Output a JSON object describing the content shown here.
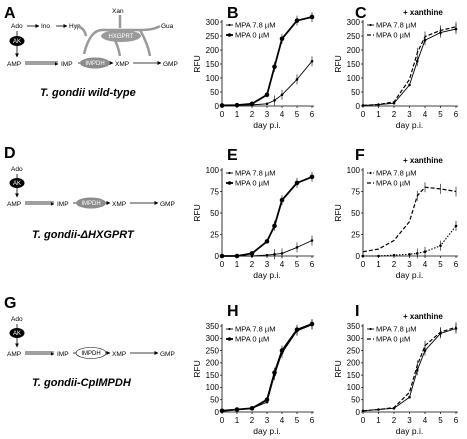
{
  "colors": {
    "line": "#000000",
    "hxgprt_enzyme": "#9a9a9a",
    "impdh_enzyme": "#8c8c8c",
    "cp_impdh_enzyme": "#ffffff",
    "ak_enzyme": "#000000"
  },
  "panels": {
    "A": {
      "label": "A",
      "strain": "T. gondii wild-type",
      "metabolites": {
        "ado": "Ado",
        "ino": "Ino",
        "hyp": "Hyp",
        "xan": "Xan",
        "gua": "Gua",
        "amp": "AMP",
        "imp": "IMP",
        "xmp": "XMP",
        "gmp": "GMP"
      },
      "enzymes": {
        "ak": "AK",
        "hxgprt": "HXGPRT",
        "impdh": "IMPDH"
      }
    },
    "D": {
      "label": "D",
      "strain": "T. gondii-ΔHXGPRT",
      "metabolites": {
        "ado": "Ado",
        "amp": "AMP",
        "imp": "IMP",
        "xmp": "XMP",
        "gmp": "GMP"
      },
      "enzymes": {
        "ak": "AK",
        "impdh": "IMPDH"
      }
    },
    "G": {
      "label": "G",
      "strain": "T. gondii-CpIMPDH",
      "metabolites": {
        "ado": "Ado",
        "amp": "AMP",
        "imp": "IMP",
        "xmp": "XMP",
        "gmp": "GMP"
      },
      "enzymes": {
        "ak": "AK",
        "impdh": "IMPDH"
      }
    }
  },
  "chart_data": [
    {
      "panel": "B",
      "type": "line",
      "title": "",
      "xlabel": "day p.i.",
      "ylabel": "RFU",
      "xlim": [
        0,
        6
      ],
      "ylim": [
        0,
        300
      ],
      "xticks": [
        0,
        1,
        2,
        3,
        4,
        5,
        6
      ],
      "yticks": [
        0,
        50,
        100,
        150,
        200,
        250,
        300
      ],
      "x": [
        0,
        1,
        2,
        3,
        3.5,
        4,
        5,
        6
      ],
      "series": [
        {
          "name": "MPA 7.8 µM",
          "style": "thin",
          "marker": "small",
          "values": [
            2,
            3,
            4,
            8,
            20,
            40,
            95,
            160
          ]
        },
        {
          "name": "MPA 0 µM",
          "style": "thick",
          "marker": "large",
          "values": [
            2,
            3,
            8,
            40,
            140,
            240,
            305,
            318
          ]
        }
      ]
    },
    {
      "panel": "C",
      "condition": "+ xanthine",
      "type": "line",
      "title": "",
      "xlabel": "day p.i.",
      "ylabel": "RFU",
      "xlim": [
        0,
        6
      ],
      "ylim": [
        0,
        300
      ],
      "xticks": [
        0,
        1,
        2,
        3,
        4,
        5,
        6
      ],
      "yticks": [
        0,
        50,
        100,
        150,
        200,
        250,
        300
      ],
      "x": [
        0,
        1,
        2,
        3,
        3.5,
        4,
        5,
        6
      ],
      "series": [
        {
          "name": "MPA 7.8 µM",
          "style": "thin",
          "marker": "small",
          "values": [
            2,
            5,
            10,
            75,
            160,
            235,
            262,
            275
          ]
        },
        {
          "name": "MPA 0 µM",
          "style": "dash",
          "marker": "none",
          "values": [
            2,
            5,
            15,
            95,
            190,
            248,
            270,
            283
          ]
        }
      ]
    },
    {
      "panel": "E",
      "type": "line",
      "title": "",
      "xlabel": "day p.i.",
      "ylabel": "RFU",
      "xlim": [
        0,
        6
      ],
      "ylim": [
        0,
        100
      ],
      "xticks": [
        0,
        1,
        2,
        3,
        4,
        5,
        6
      ],
      "yticks": [
        0,
        25,
        50,
        75,
        100
      ],
      "x": [
        0,
        1,
        2,
        3,
        3.5,
        4,
        5,
        6
      ],
      "series": [
        {
          "name": "MPA 7.8 µM",
          "style": "thin",
          "marker": "small",
          "values": [
            0,
            0,
            0,
            1,
            2,
            3,
            10,
            18
          ]
        },
        {
          "name": "MPA 0 µM",
          "style": "thick",
          "marker": "large",
          "values": [
            0,
            0,
            3,
            17,
            35,
            65,
            85,
            92
          ]
        }
      ]
    },
    {
      "panel": "F",
      "condition": "+ xanthine",
      "type": "line",
      "title": "",
      "xlabel": "day p.i.",
      "ylabel": "RFU",
      "xlim": [
        0,
        6
      ],
      "ylim": [
        0,
        100
      ],
      "xticks": [
        0,
        1,
        2,
        3,
        4,
        5,
        6
      ],
      "yticks": [
        0,
        25,
        50,
        75,
        100
      ],
      "x": [
        0,
        1,
        2,
        3,
        3.5,
        4,
        5,
        6
      ],
      "series": [
        {
          "name": "MPA 7.8 µM",
          "style": "dotted",
          "marker": "small",
          "values": [
            0,
            0,
            1,
            2,
            3,
            5,
            12,
            35
          ]
        },
        {
          "name": "MPA 0 µM",
          "style": "dash",
          "marker": "none",
          "values": [
            5,
            8,
            18,
            40,
            70,
            80,
            78,
            75
          ]
        }
      ]
    },
    {
      "panel": "H",
      "type": "line",
      "title": "",
      "xlabel": "day p.i.",
      "ylabel": "RFU",
      "xlim": [
        0,
        6
      ],
      "ylim": [
        0,
        350
      ],
      "xticks": [
        0,
        1,
        2,
        3,
        4,
        5,
        6
      ],
      "yticks": [
        0,
        50,
        100,
        150,
        200,
        250,
        300,
        350
      ],
      "x": [
        0,
        1,
        2,
        3,
        3.5,
        4,
        5,
        6
      ],
      "series": [
        {
          "name": "MPA 7.8 µM",
          "style": "thin",
          "marker": "small",
          "values": [
            5,
            10,
            15,
            40,
            150,
            240,
            330,
            355
          ]
        },
        {
          "name": "MPA 0 µM",
          "style": "thick",
          "marker": "large",
          "values": [
            5,
            10,
            15,
            50,
            160,
            250,
            335,
            358
          ]
        }
      ]
    },
    {
      "panel": "I",
      "condition": "+ xanthine",
      "type": "line",
      "title": "",
      "xlabel": "day p.i.",
      "ylabel": "RFU",
      "xlim": [
        0,
        6
      ],
      "ylim": [
        0,
        350
      ],
      "xticks": [
        0,
        1,
        2,
        3,
        4,
        5,
        6
      ],
      "yticks": [
        0,
        50,
        100,
        150,
        200,
        250,
        300,
        350
      ],
      "x": [
        0,
        1,
        2,
        3,
        3.5,
        4,
        5,
        6
      ],
      "series": [
        {
          "name": "MPA 7.8 µM",
          "style": "thin",
          "marker": "small",
          "values": [
            5,
            10,
            15,
            60,
            170,
            250,
            320,
            340
          ]
        },
        {
          "name": "MPA 0 µM",
          "style": "dash",
          "marker": "none",
          "values": [
            5,
            10,
            18,
            80,
            190,
            270,
            325,
            345
          ]
        }
      ]
    }
  ]
}
